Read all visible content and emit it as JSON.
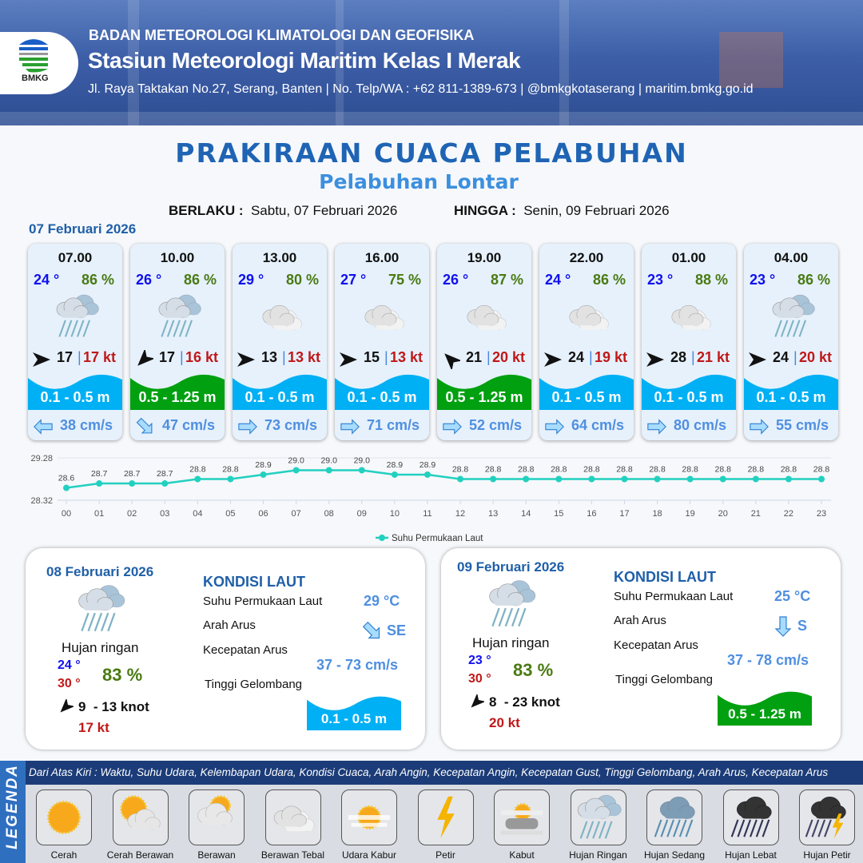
{
  "header": {
    "logo_text": "BMKG",
    "agency": "BADAN METEOROLOGI KLIMATOLOGI DAN GEOFISIKA",
    "station": "Stasiun Meteorologi Maritim Kelas I Merak",
    "contact": "Jl. Raya Taktakan No.27, Serang, Banten | No. Telp/WA : +62 811-1389-673 | @bmkgkotaserang | maritim.bmkg.go.id"
  },
  "title": "PRAKIRAAN CUACA PELABUHAN",
  "subtitle": "Pelabuhan Lontar",
  "validity": {
    "from_label": "BERLAKU :",
    "from_value": "Sabtu, 07 Februari 2026",
    "to_label": "HINGGA :",
    "to_value": "Senin, 09 Februari 2026"
  },
  "day1_date": "07 Februari 2026",
  "colors": {
    "wave_low": "#00b0f5",
    "wave_mid": "#00a010",
    "temp": "#1010ee",
    "humidity": "#4a7a12",
    "gust": "#c01818",
    "current": "#4f8fe0",
    "line": "#22d0c0"
  },
  "cards": [
    {
      "time": "07.00",
      "temp": "24 °",
      "hum": "86 %",
      "weather": "hujan-ringan",
      "wind_dir": "E",
      "wind": "17",
      "gust": "17 kt",
      "wave": "0.1 - 0.5 m",
      "wave_class": "low",
      "cur_dir": "W",
      "cur": "38 cm/s"
    },
    {
      "time": "10.00",
      "temp": "26 °",
      "hum": "86 %",
      "weather": "hujan-ringan",
      "wind_dir": "SW",
      "wind": "17",
      "gust": "16 kt",
      "wave": "0.5 - 1.25 m",
      "wave_class": "mid",
      "cur_dir": "SE",
      "cur": "47 cm/s"
    },
    {
      "time": "13.00",
      "temp": "29 °",
      "hum": "80 %",
      "weather": "berawan-tebal",
      "wind_dir": "E",
      "wind": "13",
      "gust": "13 kt",
      "wave": "0.1 - 0.5 m",
      "wave_class": "low",
      "cur_dir": "E",
      "cur": "73 cm/s"
    },
    {
      "time": "16.00",
      "temp": "27 °",
      "hum": "75 %",
      "weather": "berawan-tebal",
      "wind_dir": "E",
      "wind": "15",
      "gust": "13 kt",
      "wave": "0.1 - 0.5 m",
      "wave_class": "low",
      "cur_dir": "E",
      "cur": "71 cm/s"
    },
    {
      "time": "19.00",
      "temp": "26 °",
      "hum": "87 %",
      "weather": "berawan-tebal",
      "wind_dir": "NW",
      "wind": "21",
      "gust": "20 kt",
      "wave": "0.5 - 1.25 m",
      "wave_class": "mid",
      "cur_dir": "E",
      "cur": "52 cm/s"
    },
    {
      "time": "22.00",
      "temp": "24 °",
      "hum": "86 %",
      "weather": "berawan-tebal",
      "wind_dir": "E",
      "wind": "24",
      "gust": "19 kt",
      "wave": "0.1 - 0.5 m",
      "wave_class": "low",
      "cur_dir": "E",
      "cur": "64 cm/s"
    },
    {
      "time": "01.00",
      "temp": "23 °",
      "hum": "88 %",
      "weather": "berawan-tebal",
      "wind_dir": "E",
      "wind": "28",
      "gust": "21 kt",
      "wave": "0.1 - 0.5 m",
      "wave_class": "low",
      "cur_dir": "E",
      "cur": "80 cm/s"
    },
    {
      "time": "04.00",
      "temp": "23 °",
      "hum": "86 %",
      "weather": "hujan-ringan",
      "wind_dir": "E",
      "wind": "24",
      "gust": "20 kt",
      "wave": "0.1 - 0.5 m",
      "wave_class": "low",
      "cur_dir": "E",
      "cur": "55 cm/s"
    }
  ],
  "chart_data": {
    "type": "line",
    "x": [
      "00",
      "01",
      "02",
      "03",
      "04",
      "05",
      "06",
      "07",
      "08",
      "09",
      "10",
      "11",
      "12",
      "13",
      "14",
      "15",
      "16",
      "17",
      "18",
      "19",
      "20",
      "21",
      "22",
      "23"
    ],
    "series": [
      {
        "name": "Suhu Permukaan Laut",
        "values": [
          28.6,
          28.7,
          28.7,
          28.7,
          28.8,
          28.8,
          28.9,
          29.0,
          29.0,
          29.0,
          28.9,
          28.9,
          28.8,
          28.8,
          28.8,
          28.8,
          28.8,
          28.8,
          28.8,
          28.8,
          28.8,
          28.8,
          28.8,
          28.8
        ]
      }
    ],
    "ylim": [
      28.32,
      29.28
    ],
    "yticks": [
      "29.28",
      "28.32"
    ],
    "legend": "bottom-center",
    "grid": true
  },
  "panels": [
    {
      "date": "08 Februari 2026",
      "weather": "hujan-ringan",
      "condition": "Hujan ringan",
      "tmin": "24 °",
      "tmax": "30 °",
      "hum": "83 %",
      "wind_dir": "SW",
      "wind": "9  - 13 knot",
      "gust": "17 kt",
      "sea_title": "KONDISI LAUT",
      "sst_label": "Suhu Permukaan Laut",
      "sst": "29 °C",
      "dir_label": "Arah Arus",
      "dir": "SE",
      "speed_label": "Kecepatan Arus",
      "speed": "37 - 73 cm/s",
      "wave_label": "Tinggi Gelombang",
      "wave": "0.1 - 0.5 m",
      "wave_class": "low"
    },
    {
      "date": "09 Februari 2026",
      "weather": "hujan-ringan",
      "condition": "Hujan ringan",
      "tmin": "23 °",
      "tmax": "30 °",
      "hum": "83 %",
      "wind_dir": "SW",
      "wind": "8  - 23 knot",
      "gust": "20 kt",
      "sea_title": "KONDISI LAUT",
      "sst_label": "Suhu Permukaan Laut",
      "sst": "25 °C",
      "dir_label": "Arah Arus",
      "dir": "S",
      "speed_label": "Kecepatan Arus",
      "speed": "37 - 78 cm/s",
      "wave_label": "Tinggi Gelombang",
      "wave": "0.5 - 1.25 m",
      "wave_class": "mid"
    }
  ],
  "legend": {
    "title": "LEGENDA",
    "description": "Dari Atas Kiri : Waktu, Suhu Udara, Kelembapan Udara, Kondisi Cuaca, Arah Angin, Kecepatan Angin, Kecepatan Gust, Tinggi Gelombang, Arah Arus, Kecepatan Arus",
    "items": [
      {
        "icon": "cerah",
        "label": "Cerah"
      },
      {
        "icon": "cerah-berawan",
        "label": "Cerah Berawan"
      },
      {
        "icon": "berawan",
        "label": "Berawan"
      },
      {
        "icon": "berawan-tebal",
        "label": "Berawan Tebal"
      },
      {
        "icon": "udara-kabur",
        "label": "Udara Kabur"
      },
      {
        "icon": "petir",
        "label": "Petir"
      },
      {
        "icon": "kabut",
        "label": "Kabut"
      },
      {
        "icon": "hujan-ringan",
        "label": "Hujan Ringan"
      },
      {
        "icon": "hujan-sedang",
        "label": "Hujan Sedang"
      },
      {
        "icon": "hujan-lebat",
        "label": "Hujan Lebat"
      },
      {
        "icon": "hujan-petir",
        "label": "Hujan Petir"
      }
    ]
  }
}
